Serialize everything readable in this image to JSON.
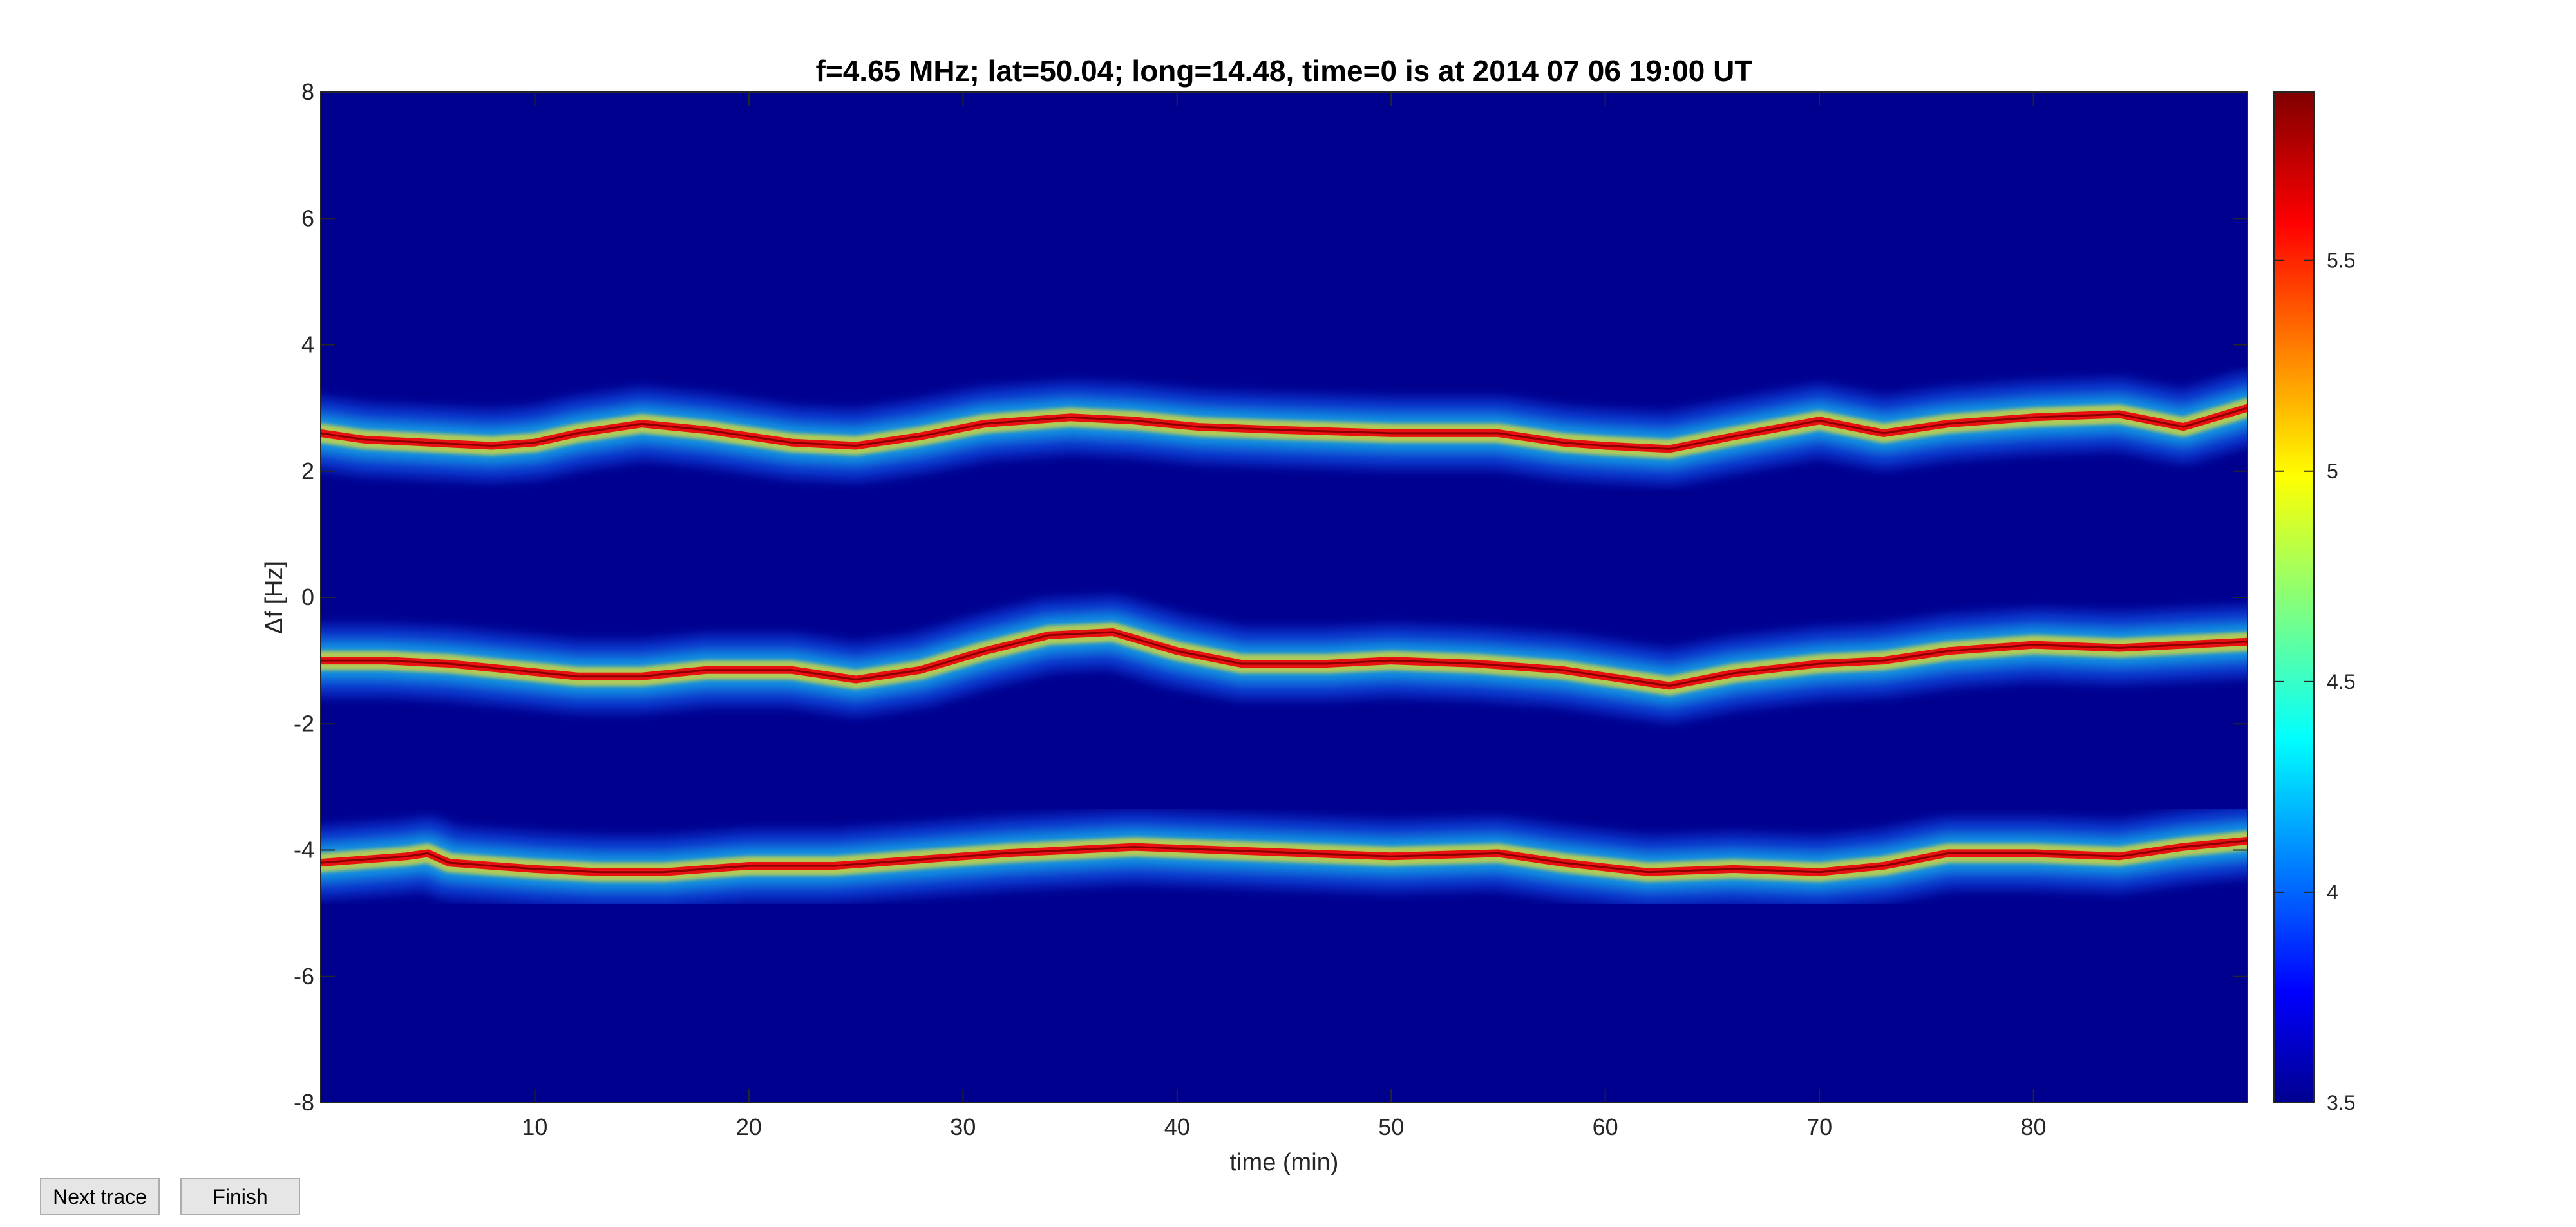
{
  "window": {
    "buttons": {
      "next_trace_label": "Next trace",
      "finish_label": "Finish"
    }
  },
  "chart_data": {
    "type": "heatmap",
    "title": "f=4.65 MHz;  lat=50.04; long=14.48, time=0 is at 2014 07 06 19:00 UT",
    "xlabel": "time (min)",
    "ylabel": "Δf [Hz]",
    "xlim": [
      0,
      90
    ],
    "ylim": [
      -8,
      8
    ],
    "x_ticks": [
      10,
      20,
      30,
      40,
      50,
      60,
      70,
      80
    ],
    "y_ticks": [
      8,
      6,
      4,
      2,
      0,
      -2,
      -4,
      -6,
      -8
    ],
    "colorbar": {
      "colormap": "jet",
      "range": [
        3.5,
        5.9
      ],
      "ticks": [
        5.5,
        5,
        4.5,
        4,
        3.5
      ]
    },
    "background_color": "#00008f",
    "grid": false,
    "traces": [
      {
        "x": [
          0,
          2,
          5,
          8,
          10,
          12,
          15,
          18,
          22,
          25,
          28,
          31,
          35,
          38,
          41,
          45,
          50,
          55,
          58,
          60,
          63,
          66,
          70,
          73,
          76,
          80,
          84,
          87,
          90
        ],
        "y": [
          2.6,
          2.5,
          2.45,
          2.4,
          2.45,
          2.6,
          2.75,
          2.65,
          2.45,
          2.4,
          2.55,
          2.75,
          2.85,
          2.8,
          2.7,
          2.65,
          2.6,
          2.6,
          2.45,
          2.4,
          2.35,
          2.55,
          2.8,
          2.6,
          2.75,
          2.85,
          2.9,
          2.7,
          3.0
        ]
      },
      {
        "x": [
          0,
          3,
          6,
          9,
          12,
          15,
          18,
          22,
          25,
          28,
          31,
          34,
          37,
          40,
          43,
          47,
          50,
          54,
          58,
          60,
          63,
          66,
          70,
          73,
          76,
          80,
          84,
          87,
          90
        ],
        "y": [
          -1.0,
          -1.0,
          -1.05,
          -1.15,
          -1.25,
          -1.25,
          -1.15,
          -1.15,
          -1.3,
          -1.15,
          -0.85,
          -0.6,
          -0.55,
          -0.85,
          -1.05,
          -1.05,
          -1.0,
          -1.05,
          -1.15,
          -1.25,
          -1.4,
          -1.2,
          -1.05,
          -1.0,
          -0.85,
          -0.75,
          -0.8,
          -0.75,
          -0.7
        ]
      },
      {
        "x": [
          0,
          2,
          4,
          5,
          6,
          8,
          10,
          13,
          16,
          20,
          24,
          28,
          32,
          35,
          38,
          42,
          46,
          50,
          55,
          58,
          62,
          66,
          70,
          73,
          76,
          80,
          84,
          87,
          90
        ],
        "y": [
          -4.2,
          -4.15,
          -4.1,
          -4.05,
          -4.2,
          -4.25,
          -4.3,
          -4.35,
          -4.35,
          -4.25,
          -4.25,
          -4.15,
          -4.05,
          -4.0,
          -3.95,
          -4.0,
          -4.05,
          -4.1,
          -4.05,
          -4.2,
          -4.35,
          -4.3,
          -4.35,
          -4.25,
          -4.05,
          -4.05,
          -4.1,
          -3.95,
          -3.85
        ]
      }
    ]
  }
}
